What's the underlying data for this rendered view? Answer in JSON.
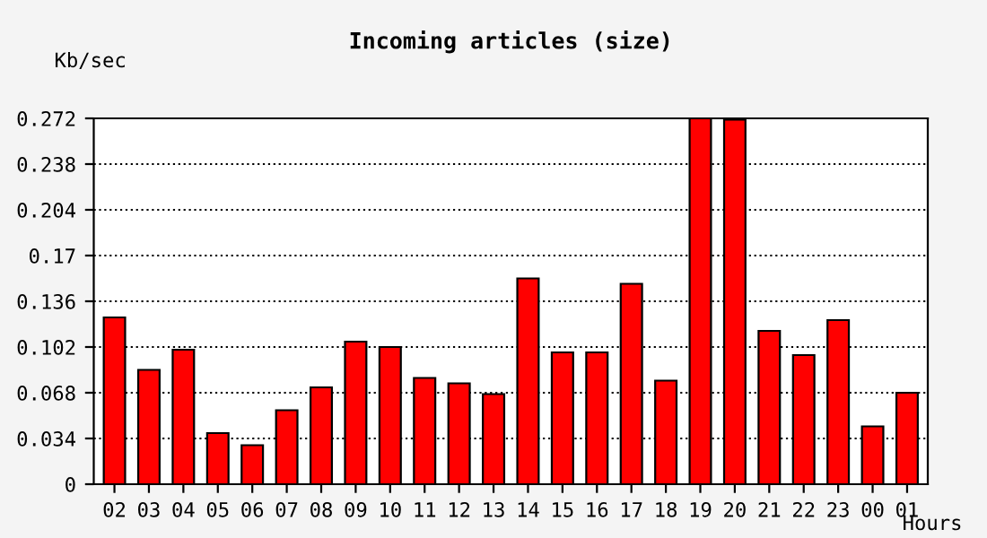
{
  "chart_data": {
    "type": "bar",
    "title": "Incoming articles (size)",
    "xlabel": "Hours",
    "ylabel": "Kb/sec",
    "categories": [
      "02",
      "03",
      "04",
      "05",
      "06",
      "07",
      "08",
      "09",
      "10",
      "11",
      "12",
      "13",
      "14",
      "15",
      "16",
      "17",
      "18",
      "19",
      "20",
      "21",
      "22",
      "23",
      "00",
      "01"
    ],
    "values": [
      0.124,
      0.085,
      0.1,
      0.038,
      0.029,
      0.055,
      0.072,
      0.106,
      0.102,
      0.079,
      0.075,
      0.067,
      0.153,
      0.098,
      0.098,
      0.149,
      0.077,
      0.272,
      0.271,
      0.114,
      0.096,
      0.122,
      0.043,
      0.068
    ],
    "color": "#ff0000",
    "ylim": [
      0,
      0.272
    ],
    "yticks": [
      0,
      0.034,
      0.068,
      0.102,
      0.136,
      0.17,
      0.204,
      0.238,
      0.272
    ],
    "grid": "y",
    "line_style": "dotted"
  }
}
